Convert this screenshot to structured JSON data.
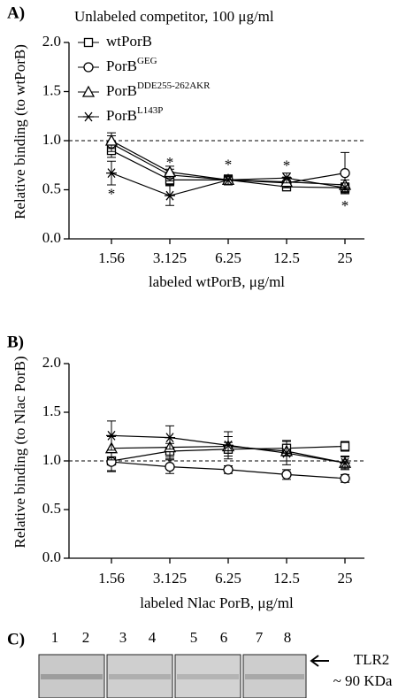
{
  "chart_data": [
    {
      "type": "line",
      "panel": "A)",
      "title": "Unlabeled competitor, 100  μg/ml",
      "xlabel": "labeled wtPorB,  μg/ml",
      "ylabel": "Relative binding (to wtPorB)",
      "categories": [
        "1.56",
        "3.125",
        "6.25",
        "12.5",
        "25"
      ],
      "ylim": [
        0,
        2.0
      ],
      "yticks": [
        {
          "value": 0,
          "label": "0.0"
        },
        {
          "value": 0.5,
          "label": "0.5"
        },
        {
          "value": 1.0,
          "label": "1.0"
        },
        {
          "value": 1.5,
          "label": "1.5"
        },
        {
          "value": 2.0,
          "label": "2.0"
        }
      ],
      "reference_line": 1.0,
      "legend": "top-left",
      "series": [
        {
          "name": "wtPorB",
          "marker": "square",
          "color": "#000000",
          "values": [
            0.9,
            0.6,
            0.6,
            0.53,
            0.52
          ],
          "errors": [
            0.07,
            0.05,
            0.04,
            0.04,
            0.04
          ]
        },
        {
          "name": "PorB",
          "superscript": "GEG",
          "marker": "circle",
          "color": "#000000",
          "values": [
            0.97,
            0.65,
            0.6,
            0.57,
            0.67
          ],
          "errors": [
            0.08,
            0.06,
            0.05,
            0.05,
            0.21
          ]
        },
        {
          "name": "PorB",
          "superscript": "DDE255-262AKR",
          "marker": "triangle",
          "color": "#000000",
          "values": [
            1.0,
            0.68,
            0.6,
            0.58,
            0.55
          ],
          "errors": [
            0.08,
            0.06,
            0.05,
            0.05,
            0.05
          ]
        },
        {
          "name": "PorB",
          "superscript": "L143P",
          "marker": "star",
          "color": "#000000",
          "values": [
            0.67,
            0.44,
            0.6,
            0.62,
            0.52
          ],
          "errors": [
            0.12,
            0.1,
            0.05,
            0.05,
            0.05
          ]
        }
      ],
      "annotations": [
        {
          "text": "*",
          "x": "1.56",
          "y": 0.48
        },
        {
          "text": "*",
          "x": "3.125",
          "y": 0.8
        },
        {
          "text": "*",
          "x": "6.25",
          "y": 0.78
        },
        {
          "text": "*",
          "x": "12.5",
          "y": 0.77
        },
        {
          "text": "*",
          "x": "25",
          "y": 0.36
        }
      ]
    },
    {
      "type": "line",
      "panel": "B)",
      "xlabel": "labeled Nlac PorB, μg/ml",
      "ylabel": "Relative binding (to  Nlac PorB)",
      "categories": [
        "1.56",
        "3.125",
        "6.25",
        "12.5",
        "25"
      ],
      "ylim": [
        0,
        2.0
      ],
      "yticks": [
        {
          "value": 0,
          "label": "0.0"
        },
        {
          "value": 0.5,
          "label": "0.5"
        },
        {
          "value": 1.0,
          "label": "1.0"
        },
        {
          "value": 1.5,
          "label": "1.5"
        },
        {
          "value": 2.0,
          "label": "2.0"
        }
      ],
      "reference_line": 1.0,
      "series": [
        {
          "marker": "square",
          "color": "#000000",
          "values": [
            1.0,
            1.1,
            1.12,
            1.13,
            1.15
          ],
          "errors": [
            0.1,
            0.08,
            0.07,
            0.08,
            0.05
          ]
        },
        {
          "marker": "circle",
          "color": "#000000",
          "values": [
            0.99,
            0.94,
            0.91,
            0.86,
            0.82
          ],
          "errors": [
            0.1,
            0.07,
            0.04,
            0.05,
            0.04
          ]
        },
        {
          "marker": "triangle",
          "color": "#000000",
          "values": [
            1.13,
            1.14,
            1.15,
            1.1,
            0.98
          ],
          "errors": [
            0.12,
            0.1,
            0.1,
            0.1,
            0.06
          ]
        },
        {
          "marker": "star",
          "color": "#000000",
          "values": [
            1.26,
            1.24,
            1.16,
            1.08,
            0.98
          ],
          "errors": [
            0.15,
            0.12,
            0.14,
            0.12,
            0.07
          ]
        }
      ]
    }
  ],
  "blot": {
    "panel": "C)",
    "lanes": [
      "1",
      "2",
      "3",
      "4",
      "5",
      "6",
      "7",
      "8"
    ],
    "target": "TLR2",
    "size": "~ 90 KDa"
  }
}
